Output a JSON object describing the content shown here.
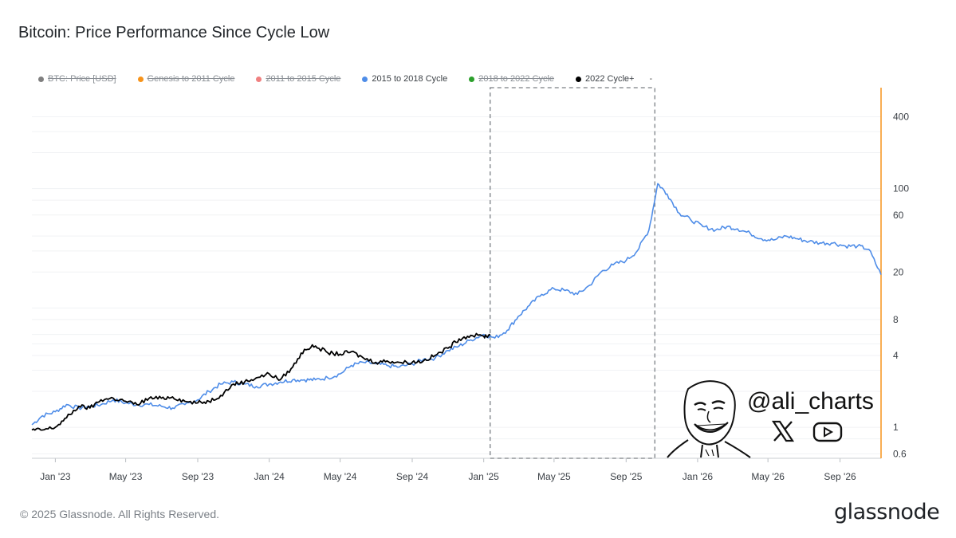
{
  "title": "Bitcoin: Price Performance Since Cycle Low",
  "legend": [
    {
      "label": "BTC: Price [USD]",
      "color": "#7f7f7f",
      "visible": false
    },
    {
      "label": "Genesis to 2011 Cycle",
      "color": "#f7931a",
      "visible": false
    },
    {
      "label": "2011 to 2015 Cycle",
      "color": "#f08080",
      "visible": false
    },
    {
      "label": "2015 to 2018 Cycle",
      "color": "#4f8de8",
      "visible": true
    },
    {
      "label": "2018 to 2022 Cycle",
      "color": "#2ca02c",
      "visible": false
    },
    {
      "label": "2022 Cycle+",
      "color": "#000000",
      "visible": true
    }
  ],
  "legend_more": "-",
  "footer": "© 2025 Glassnode. All Rights Reserved.",
  "brand": "glassnode",
  "watermark": {
    "handle": "@ali_charts",
    "icons": [
      "x-logo-icon",
      "youtube-icon",
      "face-avatar-icon"
    ]
  },
  "chart_data": {
    "type": "line",
    "title": "Bitcoin: Price Performance Since Cycle Low",
    "x_ticks": [
      "Jan '23",
      "May '23",
      "Sep '23",
      "Jan '24",
      "May '24",
      "Sep '24",
      "Jan '25",
      "May '25",
      "Sep '25",
      "Jan '26",
      "May '26",
      "Sep '26"
    ],
    "y_scale": "log",
    "y_ticks": [
      0.6,
      1,
      4,
      8,
      20,
      60,
      100,
      400
    ],
    "ylim": [
      0.55,
      700
    ],
    "xlim": [
      "2022-11-22",
      "2026-11-10"
    ],
    "highlight_region": [
      "2025-01-12",
      "2025-10-20"
    ],
    "right_axis_line_color": "#f7931a",
    "series": [
      {
        "name": "2015 to 2018 Cycle",
        "color": "#4f8de8",
        "x": [
          "2022-11-22",
          "2022-12-10",
          "2023-01-01",
          "2023-01-20",
          "2023-02-10",
          "2023-03-01",
          "2023-03-20",
          "2023-04-10",
          "2023-05-01",
          "2023-05-20",
          "2023-06-10",
          "2023-07-01",
          "2023-07-20",
          "2023-08-10",
          "2023-09-01",
          "2023-09-20",
          "2023-10-10",
          "2023-11-01",
          "2023-11-20",
          "2023-12-10",
          "2024-01-01",
          "2024-01-20",
          "2024-02-10",
          "2024-03-01",
          "2024-03-20",
          "2024-04-10",
          "2024-05-01",
          "2024-05-20",
          "2024-06-10",
          "2024-07-01",
          "2024-07-20",
          "2024-08-10",
          "2024-09-01",
          "2024-09-20",
          "2024-10-10",
          "2024-11-01",
          "2024-11-20",
          "2024-12-10",
          "2025-01-01",
          "2025-01-20",
          "2025-02-10",
          "2025-03-01",
          "2025-03-20",
          "2025-04-10",
          "2025-05-01",
          "2025-05-20",
          "2025-06-10",
          "2025-07-01",
          "2025-07-20",
          "2025-08-10",
          "2025-09-01",
          "2025-09-20",
          "2025-10-10",
          "2025-10-25",
          "2025-11-10",
          "2025-12-01",
          "2025-12-20",
          "2026-01-10",
          "2026-02-01",
          "2026-02-20",
          "2026-03-10",
          "2026-04-01",
          "2026-04-20",
          "2026-05-10",
          "2026-06-01",
          "2026-06-20",
          "2026-07-10",
          "2026-08-01",
          "2026-08-20",
          "2026-09-10",
          "2026-10-01",
          "2026-10-20",
          "2026-11-10"
        ],
        "y": [
          1.05,
          1.25,
          1.35,
          1.55,
          1.45,
          1.5,
          1.55,
          1.7,
          1.6,
          1.55,
          1.55,
          1.5,
          1.45,
          1.55,
          1.7,
          2.0,
          2.3,
          2.4,
          2.3,
          2.2,
          2.3,
          2.4,
          2.5,
          2.5,
          2.5,
          2.6,
          2.8,
          3.3,
          3.5,
          3.4,
          3.3,
          3.2,
          3.4,
          3.7,
          3.8,
          4.4,
          4.8,
          5.4,
          6.0,
          5.6,
          6.5,
          8.5,
          10.5,
          13,
          14.5,
          14,
          13,
          15.5,
          20,
          23,
          25,
          30,
          45,
          110,
          90,
          62,
          55,
          48,
          45,
          48,
          46,
          42,
          38,
          37,
          40,
          38,
          36,
          35,
          35,
          33,
          33,
          31,
          19
        ]
      },
      {
        "name": "2022 Cycle+",
        "color": "#000000",
        "x": [
          "2022-11-22",
          "2022-12-10",
          "2023-01-01",
          "2023-01-20",
          "2023-02-10",
          "2023-03-01",
          "2023-03-20",
          "2023-04-10",
          "2023-05-01",
          "2023-05-20",
          "2023-06-10",
          "2023-07-01",
          "2023-07-20",
          "2023-08-10",
          "2023-09-01",
          "2023-09-20",
          "2023-10-10",
          "2023-11-01",
          "2023-11-20",
          "2023-12-10",
          "2024-01-01",
          "2024-01-20",
          "2024-02-10",
          "2024-03-01",
          "2024-03-20",
          "2024-04-10",
          "2024-05-01",
          "2024-05-20",
          "2024-06-10",
          "2024-07-01",
          "2024-07-20",
          "2024-08-10",
          "2024-09-01",
          "2024-09-20",
          "2024-10-10",
          "2024-11-01",
          "2024-11-20",
          "2024-12-10",
          "2025-01-01",
          "2025-01-12"
        ],
        "y": [
          0.95,
          0.95,
          1.0,
          1.2,
          1.5,
          1.45,
          1.7,
          1.75,
          1.65,
          1.55,
          1.75,
          1.75,
          1.8,
          1.65,
          1.6,
          1.65,
          1.85,
          2.3,
          2.4,
          2.6,
          2.8,
          2.5,
          3.2,
          4.5,
          4.8,
          4.2,
          4.1,
          4.3,
          3.8,
          3.5,
          3.6,
          3.5,
          3.5,
          3.6,
          4.0,
          4.6,
          5.5,
          5.9,
          5.8,
          5.9
        ]
      }
    ]
  }
}
